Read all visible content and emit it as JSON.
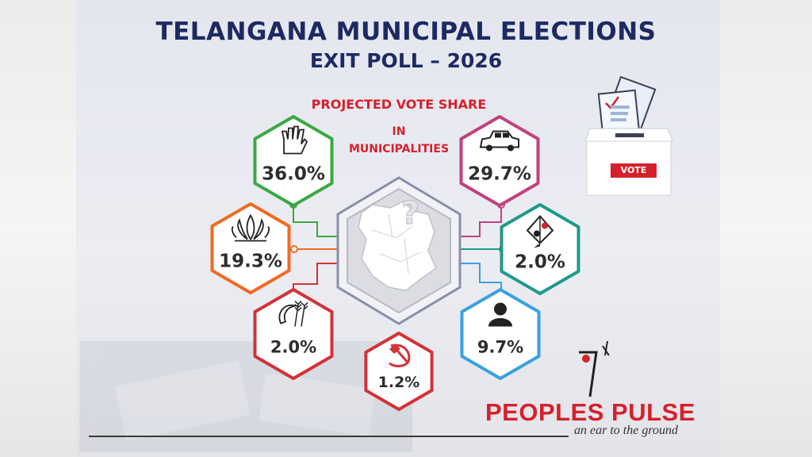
{
  "title": "TELANGANA MUNICIPAL ELECTIONS",
  "subtitle": "EXIT POLL – 2026",
  "chart_title": "PROJECTED VOTE SHARE",
  "chart_subtitle_line1": "IN",
  "chart_subtitle_line2": "MUNICIPALITIES",
  "ballot_box_label": "VOTE",
  "brand_name": "PEOPLES PULSE",
  "brand_tagline": "an ear to the ground",
  "colors": {
    "title": "#1d2a62",
    "accent_red": "#d6202a",
    "green": "#3aa843",
    "pink": "#c2417f",
    "orange": "#f06a23",
    "teal": "#1e9a8b",
    "blue": "#3aa0e0",
    "red": "#d23238"
  },
  "chart_data": {
    "type": "table",
    "title": "PROJECTED VOTE SHARE",
    "subtitle": "IN MUNICIPALITIES",
    "unit": "%",
    "parties": [
      {
        "symbol": "hand-icon",
        "label": "36.0%",
        "value": 36.0,
        "color": "#3aa843"
      },
      {
        "symbol": "car-icon",
        "label": "29.7%",
        "value": 29.7,
        "color": "#c2417f"
      },
      {
        "symbol": "lotus-icon",
        "label": "19.3%",
        "value": 19.3,
        "color": "#f06a23"
      },
      {
        "symbol": "kite-icon",
        "label": "2.0%",
        "value": 2.0,
        "color": "#1e9a8b"
      },
      {
        "symbol": "sickle-ears-icon",
        "label": "2.0%",
        "value": 2.0,
        "color": "#d23238"
      },
      {
        "symbol": "person-icon",
        "label": "9.7%",
        "value": 9.7,
        "color": "#3aa0e0"
      },
      {
        "symbol": "hammer-sickle-icon",
        "label": "1.2%",
        "value": 1.2,
        "color": "#d23238"
      }
    ]
  }
}
